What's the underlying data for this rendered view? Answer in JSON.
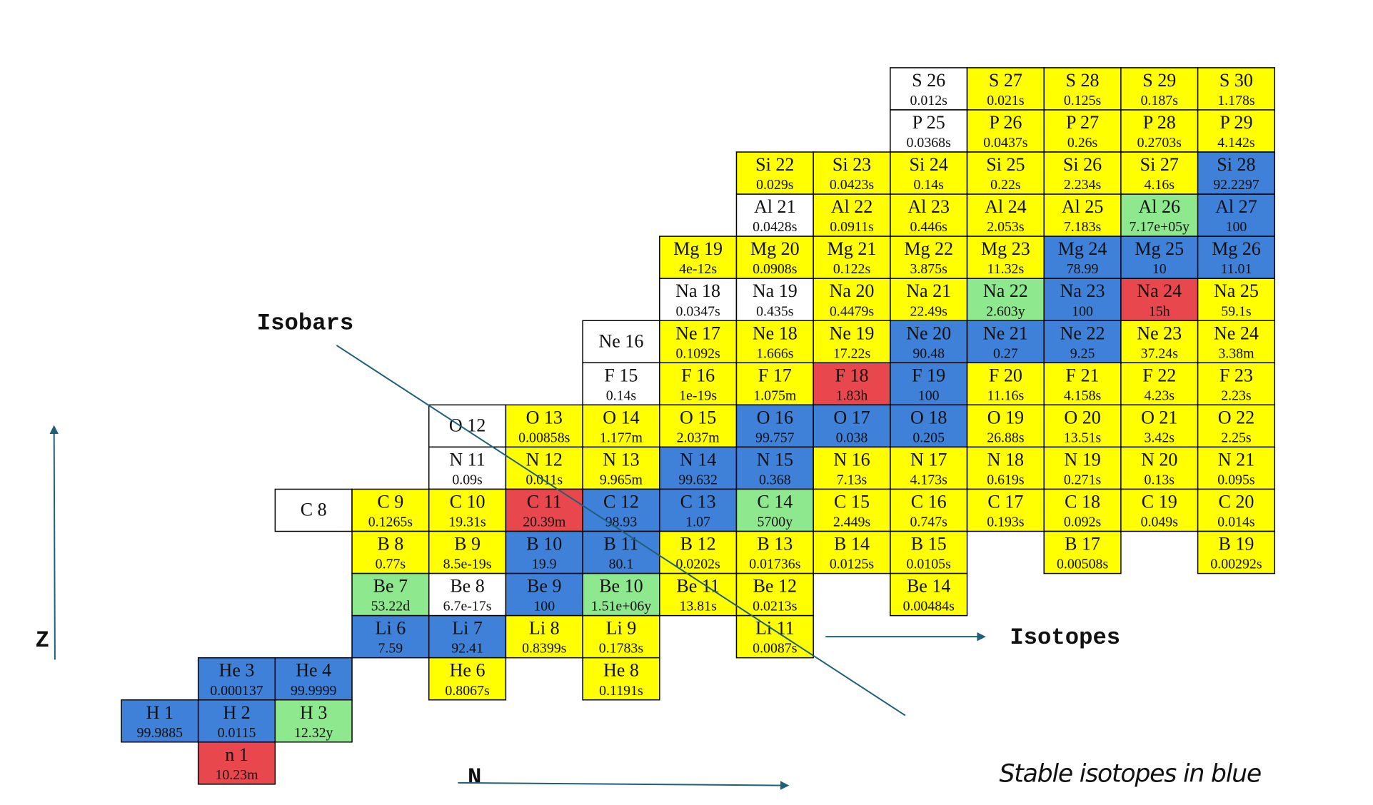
{
  "annotations": {
    "isobars": "Isobars",
    "isotopes": "Isotopes",
    "z_axis": "Z",
    "n_axis": "N",
    "legend_note": "Stable isotopes in blue"
  },
  "rows": [
    {
      "cells": [
        {
          "label": "S 26",
          "value": "0.012s",
          "color": "#ffffff"
        },
        {
          "label": "S 27",
          "value": "0.021s",
          "color": "#ffff00"
        },
        {
          "label": "S 28",
          "value": "0.125s",
          "color": "#ffff00"
        },
        {
          "label": "S 29",
          "value": "0.187s",
          "color": "#ffff00"
        },
        {
          "label": "S 30",
          "value": "1.178s",
          "color": "#ffff00"
        }
      ]
    },
    {
      "cells": [
        {
          "label": "P 25",
          "value": "0.0368s",
          "color": "#ffffff"
        },
        {
          "label": "P 26",
          "value": "0.0437s",
          "color": "#ffff00"
        },
        {
          "label": "P 27",
          "value": "0.26s",
          "color": "#ffff00"
        },
        {
          "label": "P 28",
          "value": "0.2703s",
          "color": "#ffff00"
        },
        {
          "label": "P 29",
          "value": "4.142s",
          "color": "#ffff00"
        }
      ]
    },
    {
      "cells": [
        {
          "label": "Si 22",
          "value": "0.029s",
          "color": "#ffff00"
        },
        {
          "label": "Si 23",
          "value": "0.0423s",
          "color": "#ffff00"
        },
        {
          "label": "Si 24",
          "value": "0.14s",
          "color": "#ffff00"
        },
        {
          "label": "Si 25",
          "value": "0.22s",
          "color": "#ffff00"
        },
        {
          "label": "Si 26",
          "value": "2.234s",
          "color": "#ffff00"
        },
        {
          "label": "Si 27",
          "value": "4.16s",
          "color": "#ffff00"
        },
        {
          "label": "Si 28",
          "value": "92.2297",
          "color": "#3f80d8"
        }
      ]
    },
    {
      "cells": [
        {
          "label": "Al 21",
          "value": "0.0428s",
          "color": "#ffffff"
        },
        {
          "label": "Al 22",
          "value": "0.0911s",
          "color": "#ffff00"
        },
        {
          "label": "Al 23",
          "value": "0.446s",
          "color": "#ffff00"
        },
        {
          "label": "Al 24",
          "value": "2.053s",
          "color": "#ffff00"
        },
        {
          "label": "Al 25",
          "value": "7.183s",
          "color": "#ffff00"
        },
        {
          "label": "Al 26",
          "value": "7.17e+05y",
          "color": "#8ee88e"
        },
        {
          "label": "Al 27",
          "value": "100",
          "color": "#3f80d8"
        }
      ]
    },
    {
      "cells": [
        {
          "label": "Mg 19",
          "value": "4e-12s",
          "color": "#ffff00"
        },
        {
          "label": "Mg 20",
          "value": "0.0908s",
          "color": "#ffff00"
        },
        {
          "label": "Mg 21",
          "value": "0.122s",
          "color": "#ffff00"
        },
        {
          "label": "Mg 22",
          "value": "3.875s",
          "color": "#ffff00"
        },
        {
          "label": "Mg 23",
          "value": "11.32s",
          "color": "#ffff00"
        },
        {
          "label": "Mg 24",
          "value": "78.99",
          "color": "#3f80d8"
        },
        {
          "label": "Mg 25",
          "value": "10",
          "color": "#3f80d8"
        },
        {
          "label": "Mg 26",
          "value": "11.01",
          "color": "#3f80d8"
        }
      ]
    },
    {
      "cells": [
        {
          "label": "Na 18",
          "value": "0.0347s",
          "color": "#ffffff"
        },
        {
          "label": "Na 19",
          "value": "0.435s",
          "color": "#ffffff"
        },
        {
          "label": "Na 20",
          "value": "0.4479s",
          "color": "#ffff00"
        },
        {
          "label": "Na 21",
          "value": "22.49s",
          "color": "#ffff00"
        },
        {
          "label": "Na 22",
          "value": "2.603y",
          "color": "#8ee88e"
        },
        {
          "label": "Na 23",
          "value": "100",
          "color": "#3f80d8"
        },
        {
          "label": "Na 24",
          "value": "15h",
          "color": "#e8474e"
        },
        {
          "label": "Na 25",
          "value": "59.1s",
          "color": "#ffff00"
        }
      ]
    },
    {
      "cells": [
        {
          "label": "Ne 16",
          "color": "#ffffff"
        },
        {
          "label": "Ne 17",
          "value": "0.1092s",
          "color": "#ffff00"
        },
        {
          "label": "Ne 18",
          "value": "1.666s",
          "color": "#ffff00"
        },
        {
          "label": "Ne 19",
          "value": "17.22s",
          "color": "#ffff00"
        },
        {
          "label": "Ne 20",
          "value": "90.48",
          "color": "#3f80d8"
        },
        {
          "label": "Ne 21",
          "value": "0.27",
          "color": "#3f80d8"
        },
        {
          "label": "Ne 22",
          "value": "9.25",
          "color": "#3f80d8"
        },
        {
          "label": "Ne 23",
          "value": "37.24s",
          "color": "#ffff00"
        },
        {
          "label": "Ne 24",
          "value": "3.38m",
          "color": "#ffff00"
        }
      ]
    },
    {
      "cells": [
        {
          "label": "F 15",
          "value": "0.14s",
          "color": "#ffffff"
        },
        {
          "label": "F 16",
          "value": "1e-19s",
          "color": "#ffff00"
        },
        {
          "label": "F 17",
          "value": "1.075m",
          "color": "#ffff00"
        },
        {
          "label": "F 18",
          "value": "1.83h",
          "color": "#e8474e"
        },
        {
          "label": "F 19",
          "value": "100",
          "color": "#3f80d8"
        },
        {
          "label": "F 20",
          "value": "11.16s",
          "color": "#ffff00"
        },
        {
          "label": "F 21",
          "value": "4.158s",
          "color": "#ffff00"
        },
        {
          "label": "F 22",
          "value": "4.23s",
          "color": "#ffff00"
        },
        {
          "label": "F 23",
          "value": "2.23s",
          "color": "#ffff00"
        }
      ]
    },
    {
      "cells": [
        {
          "label": "O 12",
          "color": "#ffffff"
        },
        {
          "label": "O 13",
          "value": "0.00858s",
          "color": "#ffff00"
        },
        {
          "label": "O 14",
          "value": "1.177m",
          "color": "#ffff00"
        },
        {
          "label": "O 15",
          "value": "2.037m",
          "color": "#ffff00"
        },
        {
          "label": "O 16",
          "value": "99.757",
          "color": "#3f80d8"
        },
        {
          "label": "O 17",
          "value": "0.038",
          "color": "#3f80d8"
        },
        {
          "label": "O 18",
          "value": "0.205",
          "color": "#3f80d8"
        },
        {
          "label": "O 19",
          "value": "26.88s",
          "color": "#ffff00"
        },
        {
          "label": "O 20",
          "value": "13.51s",
          "color": "#ffff00"
        },
        {
          "label": "O 21",
          "value": "3.42s",
          "color": "#ffff00"
        },
        {
          "label": "O 22",
          "value": "2.25s",
          "color": "#ffff00"
        }
      ]
    },
    {
      "cells": [
        {
          "label": "N 11",
          "value": "0.09s",
          "color": "#ffffff"
        },
        {
          "label": "N 12",
          "value": "0.011s",
          "color": "#ffff00"
        },
        {
          "label": "N 13",
          "value": "9.965m",
          "color": "#ffff00"
        },
        {
          "label": "N 14",
          "value": "99.632",
          "color": "#3f80d8"
        },
        {
          "label": "N 15",
          "value": "0.368",
          "color": "#3f80d8"
        },
        {
          "label": "N 16",
          "value": "7.13s",
          "color": "#ffff00"
        },
        {
          "label": "N 17",
          "value": "4.173s",
          "color": "#ffff00"
        },
        {
          "label": "N 18",
          "value": "0.619s",
          "color": "#ffff00"
        },
        {
          "label": "N 19",
          "value": "0.271s",
          "color": "#ffff00"
        },
        {
          "label": "N 20",
          "value": "0.13s",
          "color": "#ffff00"
        },
        {
          "label": "N 21",
          "value": "0.095s",
          "color": "#ffff00"
        }
      ]
    },
    {
      "cells": [
        {
          "label": "C 8",
          "color": "#ffffff"
        },
        {
          "label": "C 9",
          "value": "0.1265s",
          "color": "#ffff00"
        },
        {
          "label": "C 10",
          "value": "19.31s",
          "color": "#ffff00"
        },
        {
          "label": "C 11",
          "value": "20.39m",
          "color": "#e8474e"
        },
        {
          "label": "C 12",
          "value": "98.93",
          "color": "#3f80d8"
        },
        {
          "label": "C 13",
          "value": "1.07",
          "color": "#3f80d8"
        },
        {
          "label": "C 14",
          "value": "5700y",
          "color": "#8ee88e"
        },
        {
          "label": "C 15",
          "value": "2.449s",
          "color": "#ffff00"
        },
        {
          "label": "C 16",
          "value": "0.747s",
          "color": "#ffff00"
        },
        {
          "label": "C 17",
          "value": "0.193s",
          "color": "#ffff00"
        },
        {
          "label": "C 18",
          "value": "0.092s",
          "color": "#ffff00"
        },
        {
          "label": "C 19",
          "value": "0.049s",
          "color": "#ffff00"
        },
        {
          "label": "C 20",
          "value": "0.014s",
          "color": "#ffff00"
        }
      ]
    },
    {
      "cells": [
        {
          "label": "B 8",
          "value": "0.77s",
          "color": "#ffff00"
        },
        {
          "label": "B 9",
          "value": "8.5e-19s",
          "color": "#ffff00"
        },
        {
          "label": "B 10",
          "value": "19.9",
          "color": "#3f80d8"
        },
        {
          "label": "B 11",
          "value": "80.1",
          "color": "#3f80d8"
        },
        {
          "label": "B 12",
          "value": "0.0202s",
          "color": "#ffff00"
        },
        {
          "label": "B 13",
          "value": "0.01736s",
          "color": "#ffff00"
        },
        {
          "label": "B 14",
          "value": "0.0125s",
          "color": "#ffff00"
        },
        {
          "label": "B 15",
          "value": "0.0105s",
          "color": "#ffff00"
        },
        {
          "label": "B 17",
          "value": "0.00508s",
          "color": "#ffff00"
        },
        {
          "label": "B 19",
          "value": "0.00292s",
          "color": "#ffff00"
        }
      ]
    },
    {
      "cells": [
        {
          "label": "Be 7",
          "value": "53.22d",
          "color": "#8ee88e"
        },
        {
          "label": "Be 8",
          "value": "6.7e-17s",
          "color": "#ffffff"
        },
        {
          "label": "Be 9",
          "value": "100",
          "color": "#3f80d8"
        },
        {
          "label": "Be 10",
          "value": "1.51e+06y",
          "color": "#8ee88e"
        },
        {
          "label": "Be 11",
          "value": "13.81s",
          "color": "#ffff00"
        },
        {
          "label": "Be 12",
          "value": "0.0213s",
          "color": "#ffff00"
        },
        {
          "label": "Be 14",
          "value": "0.00484s",
          "color": "#ffff00"
        }
      ]
    },
    {
      "cells": [
        {
          "label": "Li 6",
          "value": "7.59",
          "color": "#3f80d8"
        },
        {
          "label": "Li 7",
          "value": "92.41",
          "color": "#3f80d8"
        },
        {
          "label": "Li 8",
          "value": "0.8399s",
          "color": "#ffff00"
        },
        {
          "label": "Li 9",
          "value": "0.1783s",
          "color": "#ffff00"
        },
        {
          "label": "Li 11",
          "value": "0.0087s",
          "color": "#ffff00"
        }
      ]
    },
    {
      "cells": [
        {
          "label": "He 3",
          "value": "0.000137",
          "color": "#3f80d8"
        },
        {
          "label": "He 4",
          "value": "99.9999",
          "color": "#3f80d8"
        },
        {
          "label": "He 6",
          "value": "0.8067s",
          "color": "#ffff00"
        },
        {
          "label": "He 8",
          "value": "0.1191s",
          "color": "#ffff00"
        }
      ]
    },
    {
      "cells": [
        {
          "label": "H 1",
          "value": "99.9885",
          "color": "#3f80d8"
        },
        {
          "label": "H 2",
          "value": "0.0115",
          "color": "#3f80d8"
        },
        {
          "label": "H 3",
          "value": "12.32y",
          "color": "#8ee88e"
        }
      ]
    },
    {
      "cells": [
        {
          "label": "n 1",
          "value": "10.23m",
          "color": "#e8474e"
        }
      ]
    }
  ]
}
